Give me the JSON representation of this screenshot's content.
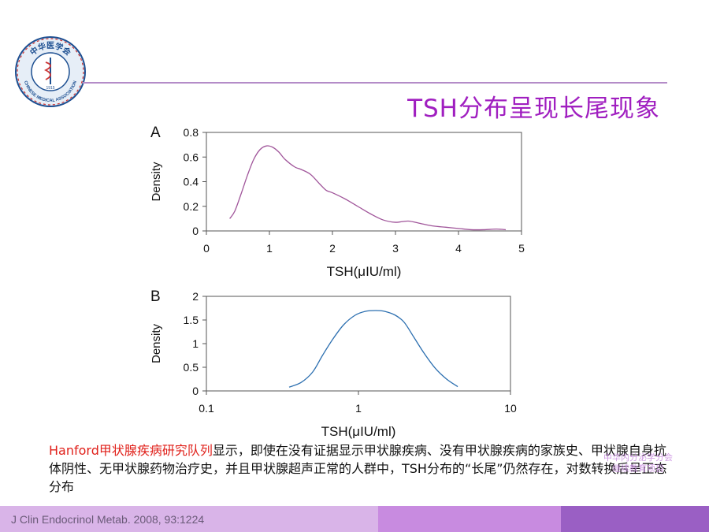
{
  "logo": {
    "text_top": "中华医学会",
    "text_bottom": "CHINESE MEDICAL ASSOCIATION",
    "year": "1915"
  },
  "title": "TSH分布呈现长尾现象",
  "chart_data": [
    {
      "type": "line",
      "panel": "A",
      "title": "",
      "xlabel": "TSH(μIU/ml)",
      "ylabel": "Density",
      "xlim": [
        0,
        5
      ],
      "ylim": [
        0,
        0.8
      ],
      "xticks": [
        0,
        1,
        2,
        3,
        4,
        5
      ],
      "yticks": [
        0,
        0.2,
        0.4,
        0.6,
        0.8
      ],
      "xtick_labels": [
        "0",
        "1",
        "2",
        "3",
        "4",
        "5"
      ],
      "ytick_labels": [
        "0",
        "0.2",
        "0.4",
        "0.6",
        "0.8"
      ],
      "color": "#a0559a",
      "x": [
        0.37,
        0.45,
        0.55,
        0.65,
        0.75,
        0.85,
        0.95,
        1.05,
        1.15,
        1.25,
        1.4,
        1.5,
        1.65,
        1.8,
        1.9,
        2.0,
        2.2,
        2.4,
        2.6,
        2.8,
        3.0,
        3.2,
        3.4,
        3.6,
        3.8,
        4.0,
        4.2,
        4.4,
        4.6,
        4.75
      ],
      "y": [
        0.1,
        0.16,
        0.3,
        0.45,
        0.58,
        0.66,
        0.69,
        0.68,
        0.64,
        0.58,
        0.52,
        0.5,
        0.46,
        0.38,
        0.33,
        0.31,
        0.26,
        0.2,
        0.14,
        0.09,
        0.07,
        0.08,
        0.06,
        0.04,
        0.03,
        0.02,
        0.01,
        0.01,
        0.015,
        0.01
      ]
    },
    {
      "type": "line",
      "panel": "B",
      "title": "",
      "xlabel": "TSH(μIU/ml)",
      "ylabel": "Density",
      "xscale": "log",
      "xlim": [
        0.1,
        10
      ],
      "ylim": [
        0,
        2
      ],
      "xticks": [
        0.1,
        1,
        10
      ],
      "yticks": [
        0,
        0.5,
        1,
        1.5,
        2
      ],
      "xtick_labels": [
        "0.1",
        "1",
        "10"
      ],
      "ytick_labels": [
        "0",
        "0.5",
        "1",
        "1.5",
        "2"
      ],
      "color": "#2c6fb0",
      "x": [
        0.35,
        0.42,
        0.5,
        0.58,
        0.68,
        0.8,
        0.95,
        1.1,
        1.3,
        1.5,
        1.75,
        2.0,
        2.3,
        2.7,
        3.2,
        3.8,
        4.5
      ],
      "y": [
        0.08,
        0.18,
        0.4,
        0.75,
        1.1,
        1.4,
        1.6,
        1.68,
        1.7,
        1.68,
        1.6,
        1.45,
        1.15,
        0.8,
        0.48,
        0.25,
        0.09
      ]
    }
  ],
  "caption": {
    "highlight": "Hanford甲状腺疾病研究队列",
    "text": "显示，即使在没有证据显示甲状腺疾病、没有甲状腺疾病的家族史、甲状腺自身抗体阴性、无甲状腺药物治疗史，并且甲状腺超声正常的人群中，TSH分布的“长尾”仍然存在，对数转换后呈正态分布"
  },
  "watermark": {
    "line1": "中华内分泌学分会",
    "line2": "继续教育项目"
  },
  "footer": {
    "citation": "J Clin Endocrinol Metab. 2008, 93:1224"
  },
  "colors": {
    "title": "#a01fc0",
    "highlight": "#e0201a",
    "rule": "#b48cc8"
  }
}
